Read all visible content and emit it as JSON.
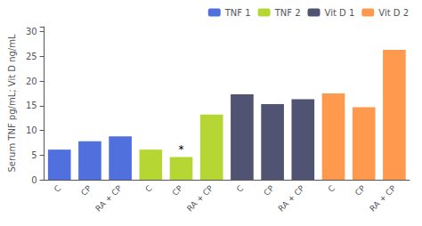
{
  "chart_data": {
    "type": "bar",
    "categories": [
      "C",
      "CP",
      "RA + CP",
      "C",
      "CP",
      "RA + CP",
      "C",
      "CP",
      "RA + CP",
      "C",
      "CP",
      "RA + CP"
    ],
    "series": [
      {
        "name": "TNF 1",
        "values": [
          6.1,
          7.8,
          8.8,
          null,
          null,
          null,
          null,
          null,
          null,
          null,
          null,
          null
        ]
      },
      {
        "name": "TNF 2",
        "values": [
          null,
          null,
          null,
          6.1,
          4.6,
          13.2,
          null,
          null,
          null,
          null,
          null,
          null
        ]
      },
      {
        "name": "Vit D 1",
        "values": [
          null,
          null,
          null,
          null,
          null,
          null,
          17.3,
          15.3,
          16.3,
          null,
          null,
          null
        ]
      },
      {
        "name": "Vit D 2",
        "values": [
          null,
          null,
          null,
          null,
          null,
          null,
          null,
          null,
          null,
          17.5,
          14.7,
          26.3
        ]
      }
    ],
    "ylabel": "Serum TNF pg/mL; Vit D ng/mL",
    "ylim": [
      0,
      31
    ],
    "yticks": [
      0,
      5,
      10,
      15,
      20,
      25,
      30
    ],
    "grid": false,
    "legend": "upper right",
    "annotations": [
      {
        "text": "*",
        "series": "TNF 2",
        "category_index": 4,
        "y": 4.6
      }
    ]
  }
}
